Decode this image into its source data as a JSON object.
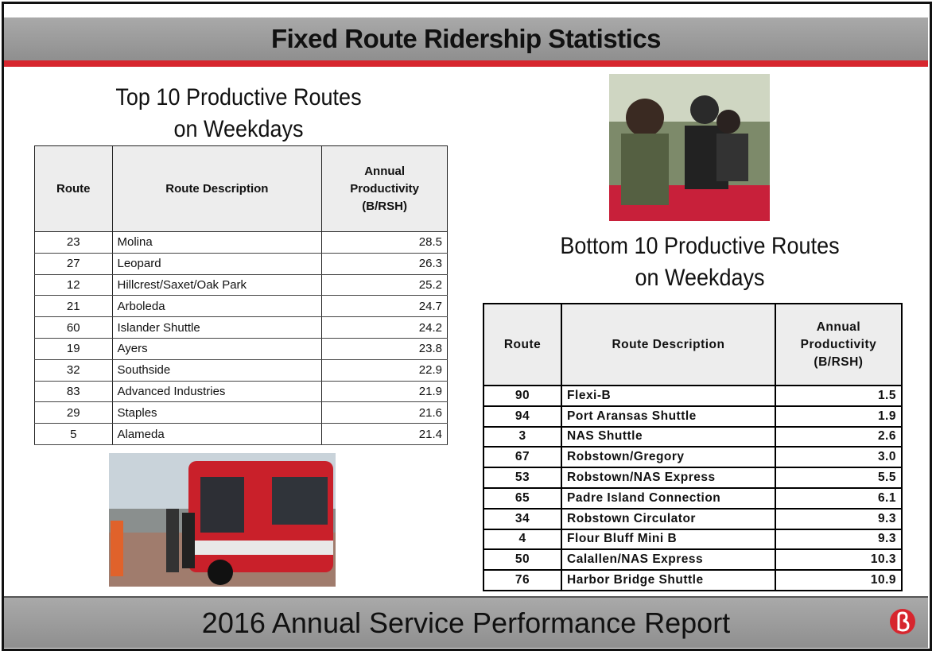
{
  "header": {
    "title": "Fixed Route Ridership Statistics"
  },
  "top": {
    "title": [
      "Top 10 Productive Routes",
      "on Weekdays"
    ],
    "table": {
      "columns": [
        [
          "Route"
        ],
        [
          "Route Description"
        ],
        [
          "Annual",
          "Productivity",
          "(B/RSH)"
        ]
      ],
      "rows": [
        [
          "23",
          "Molina",
          "28.5"
        ],
        [
          "27",
          "Leopard",
          "26.3"
        ],
        [
          "12",
          "Hillcrest/Saxet/Oak Park",
          "25.2"
        ],
        [
          "21",
          "Arboleda",
          "24.7"
        ],
        [
          "60",
          "Islander Shuttle",
          "24.2"
        ],
        [
          "19",
          "Ayers",
          "23.8"
        ],
        [
          "32",
          "Southside",
          "22.9"
        ],
        [
          "83",
          "Advanced Industries",
          "21.9"
        ],
        [
          "29",
          "Staples",
          "21.6"
        ],
        [
          "5",
          "Alameda",
          "21.4"
        ]
      ]
    }
  },
  "bottom": {
    "title": [
      "Bottom 10 Productive Routes",
      "on Weekdays"
    ],
    "table": {
      "columns": [
        [
          "Route"
        ],
        [
          "Route Description"
        ],
        [
          "Annual",
          "Productivity",
          "(B/RSH)"
        ]
      ],
      "rows": [
        [
          "90",
          "Flexi-B",
          "1.5"
        ],
        [
          "94",
          "Port Aransas Shuttle",
          "1.9"
        ],
        [
          "3",
          "NAS Shuttle",
          "2.6"
        ],
        [
          "67",
          "Robstown/Gregory",
          "3.0"
        ],
        [
          "53",
          "Robstown/NAS Express",
          "5.5"
        ],
        [
          "65",
          "Padre Island Connection",
          "6.1"
        ],
        [
          "34",
          "Robstown Circulator",
          "9.3"
        ],
        [
          "4",
          "Flour Bluff Mini B",
          "9.3"
        ],
        [
          "50",
          "Calallen/NAS Express",
          "10.3"
        ],
        [
          "76",
          "Harbor Bridge Shuttle",
          "10.9"
        ]
      ]
    }
  },
  "footer": {
    "text": "2016 Annual Service Performance Report"
  }
}
